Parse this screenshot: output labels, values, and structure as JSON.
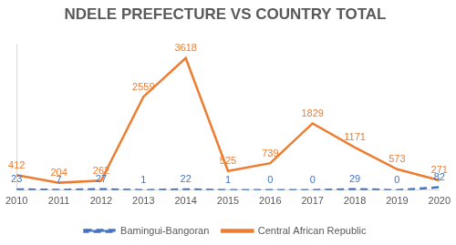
{
  "chart_data": {
    "type": "line",
    "title": "NDELE PREFECTURE VS COUNTRY TOTAL",
    "categories": [
      "2010",
      "2011",
      "2012",
      "2013",
      "2014",
      "2015",
      "2016",
      "2017",
      "2018",
      "2019",
      "2020"
    ],
    "series": [
      {
        "name": "Bamingui-Bangoran",
        "color": "#4472c4",
        "line_style": "dashed",
        "values": [
          23,
          7,
          27,
          1,
          22,
          1,
          0,
          0,
          29,
          0,
          82
        ]
      },
      {
        "name": "Central African Republic",
        "color": "#ed7d31",
        "line_style": "solid",
        "values": [
          412,
          204,
          262,
          2559,
          3618,
          525,
          739,
          1829,
          1171,
          573,
          271
        ]
      }
    ],
    "ylim": [
      0,
      4000
    ],
    "grid": false,
    "legend": "bottom",
    "data_labels": true,
    "tick_labels": "x"
  }
}
